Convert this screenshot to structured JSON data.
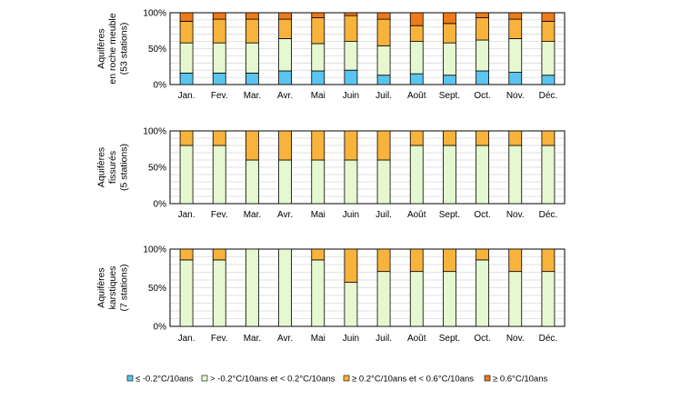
{
  "chart_data": {
    "type": "bar",
    "stacked": true,
    "percent": true,
    "categories": [
      "Jan.",
      "Fev.",
      "Mar.",
      "Avr.",
      "Mai",
      "Juin",
      "Juil.",
      "Août",
      "Sept.",
      "Oct.",
      "Nov.",
      "Déc."
    ],
    "yticks": [
      "0%",
      "50%",
      "100%"
    ],
    "ylim": [
      0,
      100
    ],
    "legend_position": "bottom",
    "legend": [
      {
        "name": "≤ -0.2°C/10ans",
        "color": "#5bc4ef"
      },
      {
        "name": "> -0.2°C/10ans et < 0.2°C/10ans",
        "color": "#e6f8d0"
      },
      {
        "name": "≥ 0.2°C/10ans et < 0.6°C/10ans",
        "color": "#f7b33c"
      },
      {
        "name": "≥ 0.6°C/10ans",
        "color": "#ee7a1a"
      }
    ],
    "panels": [
      {
        "ylabel": [
          "Aquifères",
          "en roche meuble",
          "(53 stations)"
        ],
        "series": [
          {
            "name": "≤ -0.2°C/10ans",
            "values": [
              16,
              16,
              16,
              19,
              19,
              20,
              13,
              15,
              13,
              19,
              17,
              13
            ]
          },
          {
            "name": "> -0.2°C/10ans et < 0.2°C/10ans",
            "values": [
              42,
              42,
              42,
              45,
              38,
              40,
              41,
              45,
              45,
              43,
              47,
              47
            ]
          },
          {
            "name": "≥ 0.2°C/10ans et < 0.6°C/10ans",
            "values": [
              30,
              33,
              33,
              27,
              36,
              36,
              37,
              22,
              27,
              31,
              27,
              28
            ]
          },
          {
            "name": "≥ 0.6°C/10ans",
            "values": [
              12,
              9,
              9,
              9,
              7,
              4,
              9,
              18,
              15,
              7,
              9,
              12
            ]
          }
        ]
      },
      {
        "ylabel": [
          "Aquifères",
          "fissurés",
          "(5 stations)"
        ],
        "series": [
          {
            "name": "≤ -0.2°C/10ans",
            "values": [
              0,
              0,
              0,
              0,
              0,
              0,
              0,
              0,
              0,
              0,
              0,
              0
            ]
          },
          {
            "name": "> -0.2°C/10ans et < 0.2°C/10ans",
            "values": [
              80,
              80,
              60,
              60,
              60,
              60,
              60,
              80,
              80,
              80,
              80,
              80
            ]
          },
          {
            "name": "≥ 0.2°C/10ans et < 0.6°C/10ans",
            "values": [
              20,
              20,
              40,
              40,
              40,
              40,
              40,
              20,
              20,
              20,
              20,
              20
            ]
          },
          {
            "name": "≥ 0.6°C/10ans",
            "values": [
              0,
              0,
              0,
              0,
              0,
              0,
              0,
              0,
              0,
              0,
              0,
              0
            ]
          }
        ]
      },
      {
        "ylabel": [
          "Aquifères",
          "karstiques",
          "(7 stations)"
        ],
        "series": [
          {
            "name": "≤ -0.2°C/10ans",
            "values": [
              0,
              0,
              0,
              0,
              0,
              0,
              0,
              0,
              0,
              0,
              0,
              0
            ]
          },
          {
            "name": "> -0.2°C/10ans et < 0.2°C/10ans",
            "values": [
              86,
              86,
              100,
              100,
              86,
              57,
              71,
              71,
              71,
              86,
              71,
              71
            ]
          },
          {
            "name": "≥ 0.2°C/10ans et < 0.6°C/10ans",
            "values": [
              14,
              14,
              0,
              0,
              14,
              43,
              29,
              29,
              29,
              14,
              29,
              29
            ]
          },
          {
            "name": "≥ 0.6°C/10ans",
            "values": [
              0,
              0,
              0,
              0,
              0,
              0,
              0,
              0,
              0,
              0,
              0,
              0
            ]
          }
        ]
      }
    ]
  }
}
